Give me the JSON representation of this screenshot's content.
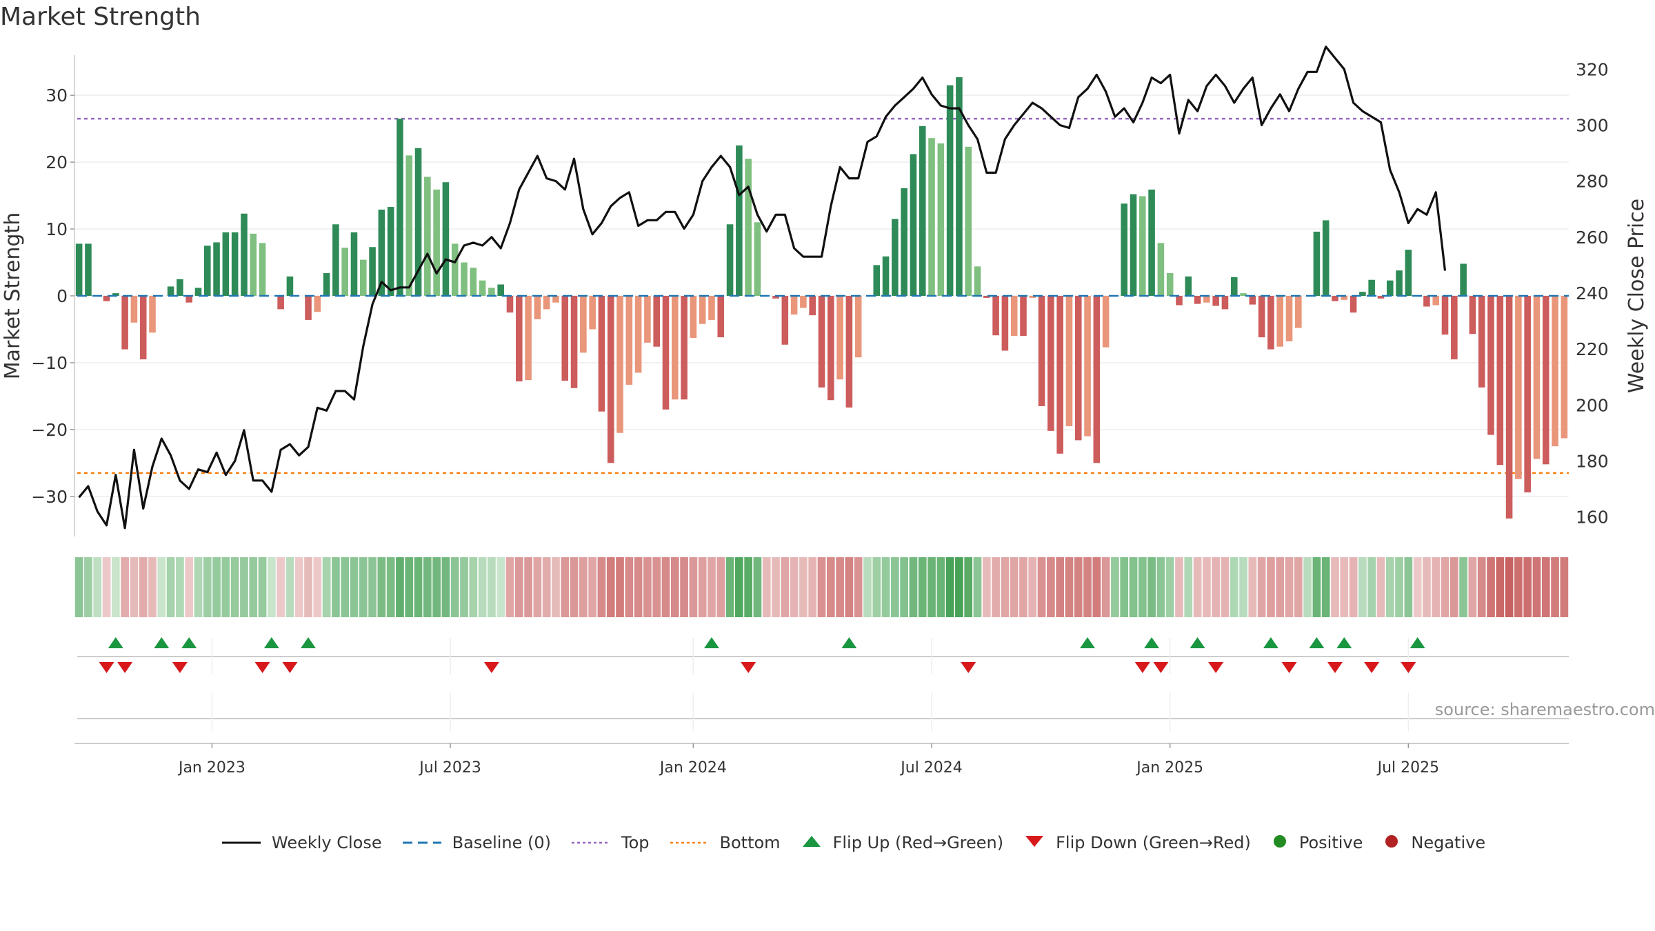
{
  "title": "Market Strength",
  "source": "source: sharemaestro.com",
  "colors": {
    "strong_green": "#2e8b57",
    "light_green": "#7fbf7f",
    "strong_red": "#cd5c5c",
    "light_red": "#e9967a",
    "price": "#111111",
    "baseline": "#1f77b4",
    "top": "#9467bd",
    "bottom": "#ff7f0e",
    "flip_up": "#1a9641",
    "flip_down": "#d7191c",
    "positive": "#228b22",
    "negative": "#b22222"
  },
  "legend": [
    {
      "key": "close",
      "label": "Weekly Close"
    },
    {
      "key": "baseline",
      "label": "Baseline (0)"
    },
    {
      "key": "top",
      "label": "Top"
    },
    {
      "key": "bottom",
      "label": "Bottom"
    },
    {
      "key": "flip_up",
      "label": "Flip Up (Red→Green)"
    },
    {
      "key": "flip_down",
      "label": "Flip Down (Green→Red)"
    },
    {
      "key": "positive",
      "label": "Positive"
    },
    {
      "key": "negative",
      "label": "Negative"
    }
  ],
  "chart_data": {
    "type": "bar+line",
    "x_tick_labels": [
      "Jan 2023",
      "Jul 2023",
      "Jan 2024",
      "Jul 2024",
      "Jan 2025",
      "Jul 2025"
    ],
    "x_tick_week_index": [
      15,
      41,
      67.5,
      93.5,
      119.5,
      145.5
    ],
    "left_axis": {
      "label": "Market Strength",
      "ylim": [
        -36,
        36
      ],
      "ticks": [
        30,
        20,
        10,
        0,
        -10,
        -20,
        -30
      ],
      "tick_labels": [
        "30",
        "20",
        "10",
        "0",
        "−10",
        "−20",
        "−30"
      ]
    },
    "right_axis": {
      "label": "Weekly Close Price",
      "ylim": [
        153,
        325
      ],
      "ticks": [
        320,
        300,
        280,
        260,
        240,
        220,
        200,
        180,
        160
      ],
      "tick_labels": [
        "320",
        "300",
        "280",
        "260",
        "240",
        "220",
        "200",
        "180",
        "160"
      ]
    },
    "top_threshold": 26.5,
    "bottom_threshold": -26.5,
    "strength": [
      7.8,
      7.8,
      0,
      -0.8,
      0.4,
      -8,
      -4,
      -9.5,
      -5.5,
      0,
      1.4,
      2.5,
      -1,
      1.2,
      7.5,
      8,
      9.5,
      9.5,
      12.3,
      9.3,
      7.9,
      0,
      -2,
      2.9,
      0,
      -3.6,
      -2.4,
      3.4,
      10.7,
      7.2,
      9.5,
      5.4,
      7.3,
      12.9,
      13.3,
      26.5,
      21,
      22.1,
      17.8,
      15.9,
      17,
      7.8,
      5,
      4.2,
      2.3,
      1.2,
      1.7,
      -2.5,
      -12.8,
      -12.6,
      -3.5,
      -2,
      -1,
      -12.7,
      -13.8,
      -8.5,
      -5,
      -17.3,
      -25,
      -20.5,
      -13.3,
      -11.5,
      -7,
      -7.6,
      -17,
      -15.5,
      -15.5,
      -6.3,
      -4.2,
      -3.6,
      -6.2,
      10.7,
      22.5,
      20.5,
      11,
      0,
      -0.4,
      -7.3,
      -2.8,
      -1.8,
      -2.9,
      -13.7,
      -15.6,
      -12.5,
      -16.7,
      -9.2,
      0,
      4.6,
      5.9,
      11.5,
      16.1,
      21.2,
      25.4,
      23.6,
      22.8,
      31.5,
      32.7,
      22.3,
      4.4,
      -0.3,
      -5.9,
      -8.2,
      -6,
      -6,
      -0.3,
      -16.5,
      -20.2,
      -23.6,
      -19.5,
      -21.6,
      -21,
      -25,
      -7.7,
      0,
      13.8,
      15.2,
      14.9,
      15.9,
      7.9,
      3.4,
      -1.4,
      2.9,
      -1.2,
      -1,
      -1.5,
      -2,
      2.8,
      0.4,
      -1.3,
      -6.2,
      -8,
      -7.6,
      -6.8,
      -4.8,
      0,
      9.6,
      11.3,
      -0.8,
      -0.6,
      -2.5,
      0.6,
      2.4,
      -0.4,
      2.3,
      3.8,
      6.9,
      0,
      -1.6,
      -1.4,
      -5.8,
      -9.5,
      4.8,
      -5.7,
      -13.7,
      -20.8,
      -25.3,
      -33.3,
      -27.4,
      -29.4,
      -24.4,
      -25.2,
      -22.5,
      -21.3
    ],
    "weekly_close": [
      167,
      171,
      162,
      157,
      175,
      156,
      184,
      163,
      178,
      188,
      182,
      173,
      170,
      177,
      176,
      183,
      175,
      180,
      191,
      173,
      173,
      169,
      184,
      186,
      182,
      185,
      199,
      198,
      205,
      205,
      202,
      221,
      236,
      244,
      241,
      242,
      242,
      248,
      254,
      247,
      252,
      251,
      257,
      258,
      257,
      260,
      256,
      265,
      277,
      283,
      289,
      281,
      280,
      277,
      288,
      270,
      261,
      265,
      271,
      274,
      276,
      264,
      266,
      266,
      269,
      269,
      263,
      268,
      280,
      285,
      289,
      285,
      275,
      278,
      268,
      262,
      268,
      268,
      256,
      253,
      253,
      253,
      271,
      285,
      281,
      281,
      294,
      296,
      303,
      307,
      310,
      313,
      317,
      311,
      307,
      306,
      306,
      300,
      295,
      283,
      283,
      295,
      300,
      304,
      308,
      306,
      303,
      300,
      299,
      310,
      313,
      318,
      312,
      303,
      306,
      301,
      308,
      317,
      315,
      318,
      297,
      309,
      305,
      314,
      318,
      314,
      308,
      313,
      317,
      300,
      306,
      311,
      305,
      313,
      319,
      319,
      328,
      324,
      320,
      308,
      305,
      303,
      301,
      284,
      276,
      265,
      270,
      268,
      276,
      248
    ],
    "regime_shade": [
      0.55,
      0.45,
      0.25,
      -0.2,
      0.2,
      -0.4,
      -0.3,
      -0.4,
      -0.3,
      0.2,
      0.4,
      0.35,
      -0.2,
      0.35,
      0.45,
      0.5,
      0.5,
      0.5,
      0.5,
      0.5,
      0.5,
      0.2,
      -0.2,
      0.3,
      -0.2,
      -0.3,
      -0.2,
      0.4,
      0.55,
      0.55,
      0.55,
      0.55,
      0.55,
      0.65,
      0.65,
      0.8,
      0.75,
      0.75,
      0.7,
      0.7,
      0.7,
      0.55,
      0.5,
      0.4,
      0.3,
      0.3,
      0.2,
      -0.45,
      -0.55,
      -0.55,
      -0.45,
      -0.4,
      -0.3,
      -0.55,
      -0.55,
      -0.5,
      -0.45,
      -0.65,
      -0.75,
      -0.75,
      -0.65,
      -0.65,
      -0.6,
      -0.6,
      -0.65,
      -0.65,
      -0.65,
      -0.55,
      -0.5,
      -0.45,
      -0.5,
      0.75,
      0.9,
      0.85,
      0.7,
      -0.3,
      -0.3,
      -0.45,
      -0.35,
      -0.3,
      -0.35,
      -0.6,
      -0.65,
      -0.65,
      -0.7,
      -0.6,
      0.3,
      0.45,
      0.5,
      0.55,
      0.6,
      0.7,
      0.75,
      0.75,
      0.75,
      0.95,
      0.95,
      0.85,
      0.55,
      -0.3,
      -0.4,
      -0.45,
      -0.45,
      -0.45,
      -0.35,
      -0.6,
      -0.65,
      -0.7,
      -0.7,
      -0.7,
      -0.7,
      -0.75,
      -0.55,
      0.5,
      0.6,
      0.6,
      0.6,
      0.65,
      0.55,
      0.45,
      -0.3,
      0.35,
      -0.3,
      -0.3,
      -0.35,
      -0.35,
      0.35,
      0.3,
      -0.3,
      -0.45,
      -0.5,
      -0.5,
      -0.45,
      -0.45,
      0.3,
      0.75,
      0.75,
      -0.3,
      -0.3,
      -0.35,
      0.3,
      0.4,
      -0.3,
      0.4,
      0.45,
      0.55,
      -0.2,
      -0.3,
      -0.35,
      -0.45,
      -0.55,
      0.55,
      -0.45,
      -0.65,
      -0.8,
      -0.9,
      -0.95,
      -0.85,
      -0.85,
      -0.8,
      -0.8,
      -0.75,
      -0.75
    ],
    "flip_up_weeks": [
      4,
      9,
      12,
      21,
      25,
      69,
      84,
      110,
      117,
      122,
      130,
      135,
      138,
      146
    ],
    "flip_down_weeks": [
      3,
      5,
      11,
      20,
      23,
      45,
      73,
      97,
      116,
      118,
      124,
      132,
      137,
      141,
      145
    ]
  }
}
